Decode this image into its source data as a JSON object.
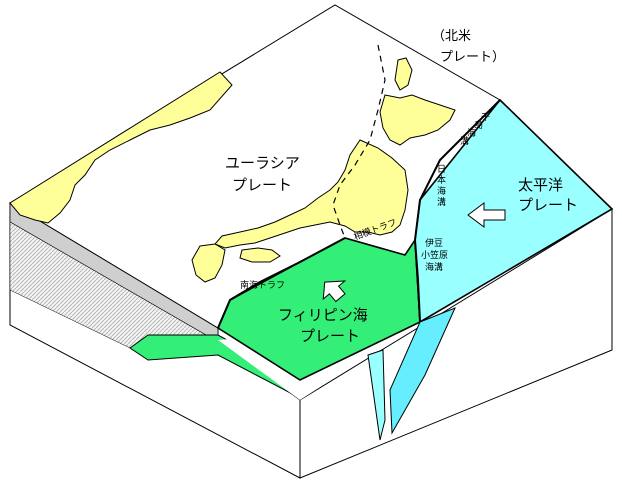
{
  "colors": {
    "eurasian": "#ffffff",
    "land": "#ffff99",
    "philippine": "#33ee77",
    "pacific": "#99ffff",
    "pacific_dark": "#66eeff",
    "side_face": "#f2f2f2",
    "hatch": "#b0b0b0",
    "outline": "#000000"
  },
  "labels": {
    "north_american_line1": "（北米",
    "north_american_line2": "プレート）",
    "eurasian_line1": "ユーラシア",
    "eurasian_line2": "プレート",
    "pacific_line1": "太平洋",
    "pacific_line2": "プレート",
    "philippine_line1": "フィリピン海",
    "philippine_line2": "プレート",
    "nankai_trough": "南海トラフ",
    "sagami_trough": "相模トラフ",
    "japan_trench": [
      "日",
      "本",
      "海",
      "溝"
    ],
    "kuril_trench": [
      "千",
      "島",
      "海",
      "溝"
    ],
    "izu_ogasawara_trench": [
      "伊豆",
      "小笠原",
      "海溝"
    ]
  },
  "icons": {
    "pacific_motion": "arrow-icon",
    "philippine_motion": "arrow-icon"
  }
}
